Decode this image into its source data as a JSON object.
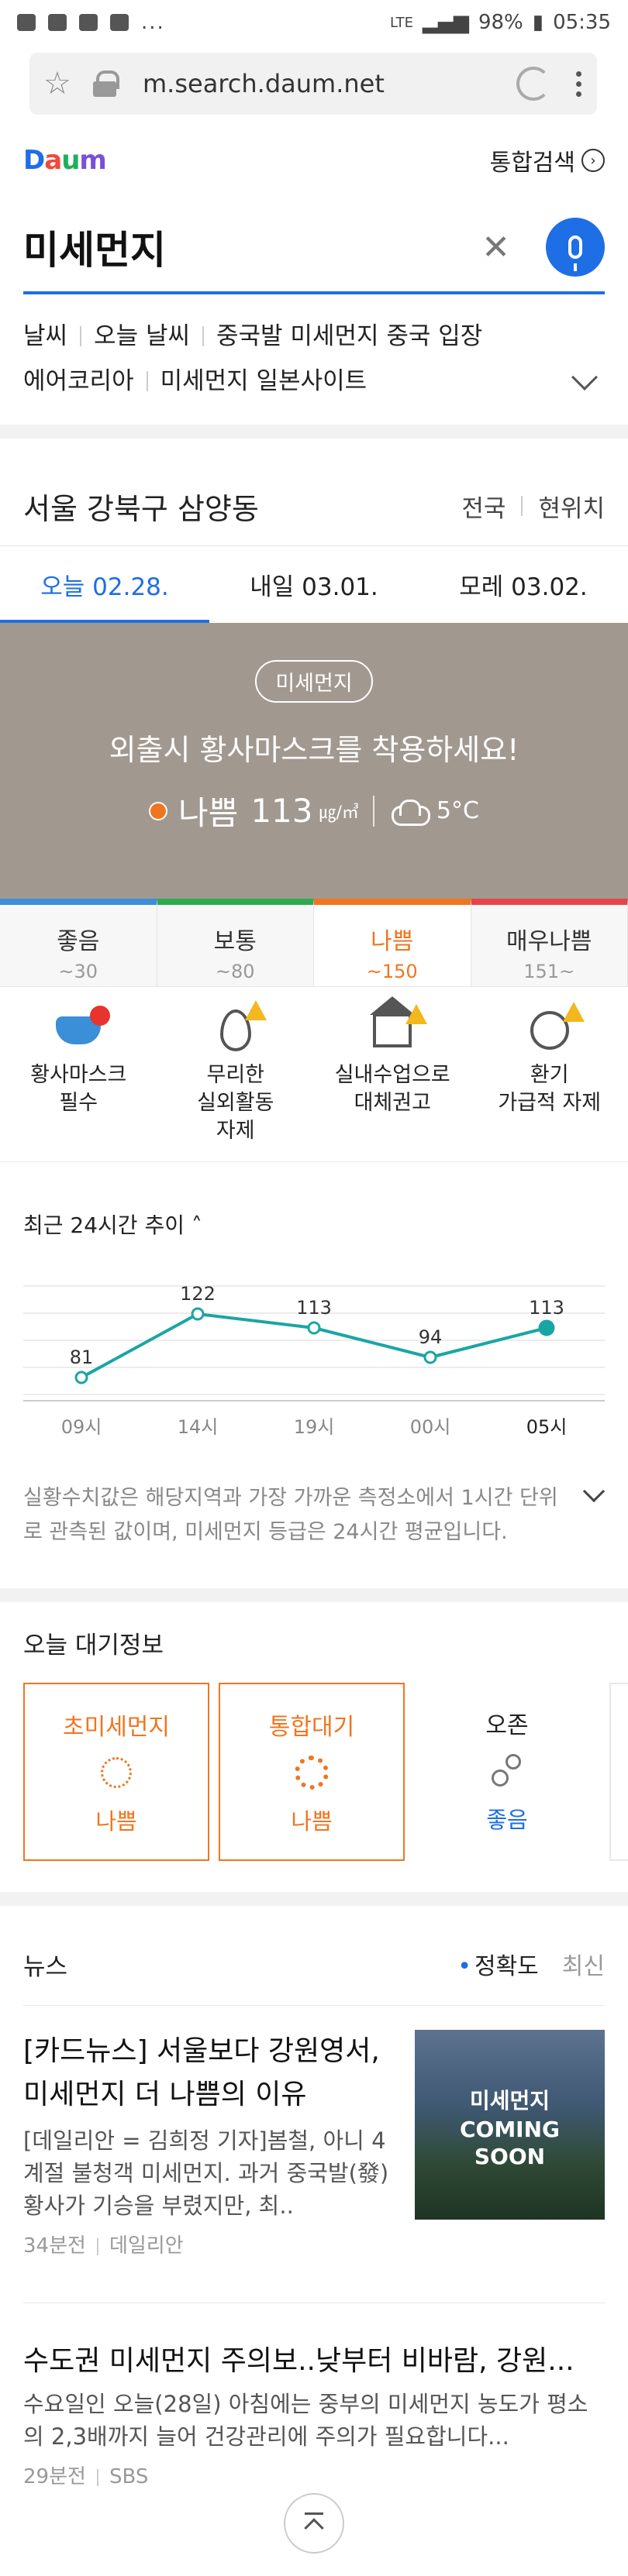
{
  "statusbar": {
    "time": "05:35",
    "battery": "98%",
    "net": "LTE",
    "more": "..."
  },
  "browser": {
    "url": "m.search.daum.net"
  },
  "header": {
    "logo": "Daum",
    "integrated": "통합검색"
  },
  "search": {
    "query": "미세먼지"
  },
  "related": {
    "line1": [
      "날씨",
      "오늘 날씨",
      "중국발 미세먼지 중국 입장"
    ],
    "line2": [
      "에어코리아",
      "미세먼지 일본사이트"
    ]
  },
  "location": {
    "place": "서울 강북구 삼양동",
    "national": "전국",
    "current": "현위치"
  },
  "days": [
    "오늘 02.28.",
    "내일 03.01.",
    "모레 03.02."
  ],
  "hero": {
    "badge": "미세먼지",
    "message": "외출시 황사마스크를 착용하세요!",
    "level": "나쁨",
    "value": "113",
    "unit": "㎍/㎥",
    "temp": "5°C"
  },
  "levels": [
    {
      "name": "좋음",
      "range": "~30",
      "color": "#3b8ed8"
    },
    {
      "name": "보통",
      "range": "~80",
      "color": "#2eaa4f"
    },
    {
      "name": "나쁨",
      "range": "~150",
      "color": "#f07520"
    },
    {
      "name": "매우나쁨",
      "range": "151~",
      "color": "#e8434b"
    }
  ],
  "advice": [
    {
      "l1": "황사마스크",
      "l2": "필수",
      "l3": ""
    },
    {
      "l1": "무리한",
      "l2": "실외활동",
      "l3": "자제"
    },
    {
      "l1": "실내수업으로",
      "l2": "대체권고",
      "l3": ""
    },
    {
      "l1": "환기",
      "l2": "가급적 자제",
      "l3": ""
    }
  ],
  "trend": {
    "title": "최근 24시간 추이"
  },
  "chart_data": {
    "type": "line",
    "x": [
      "09시",
      "14시",
      "19시",
      "00시",
      "05시"
    ],
    "values": [
      81,
      122,
      113,
      94,
      113
    ],
    "ylim": [
      70,
      140
    ],
    "color": "#1aa5a5",
    "grid": true
  },
  "note": "실황수치값은 해당지역과 가장 가까운 측정소에서 1시간 단위로 관측된 값이며, 미세먼지 등급은 24시간 평균입니다.",
  "air": {
    "title": "오늘 대기정보",
    "items": [
      {
        "name": "초미세먼지",
        "status": "나쁨"
      },
      {
        "name": "통합대기",
        "status": "나쁨"
      },
      {
        "name": "오존",
        "status": "좋음"
      }
    ]
  },
  "news": {
    "title": "뉴스",
    "sort_accuracy": "정확도",
    "sort_latest": "최신",
    "item1": {
      "title": "[카드뉴스] 서울보다 강원영서, 미세먼지 더 나쁨의 이유",
      "desc": "[데일리안 = 김희정 기자]봄철, 아니 4계절 불청객 미세먼지. 과거 중국발(發) 황사가 기승을 부렸지만, 최..",
      "time": "34분전",
      "source": "데일리안",
      "thumb1": "미세먼지",
      "thumb2": "COMING",
      "thumb3": "SOON"
    },
    "item2": {
      "title": "수도권 미세먼지 주의보..낮부터 비바람, 강원...",
      "desc": "수요일인 오늘(28일) 아침에는 중부의 미세먼지 농도가 평소의 2,3배까지 늘어 건강관리에 주의가 필요합니다...",
      "time": "29분전",
      "source": "SBS"
    }
  }
}
